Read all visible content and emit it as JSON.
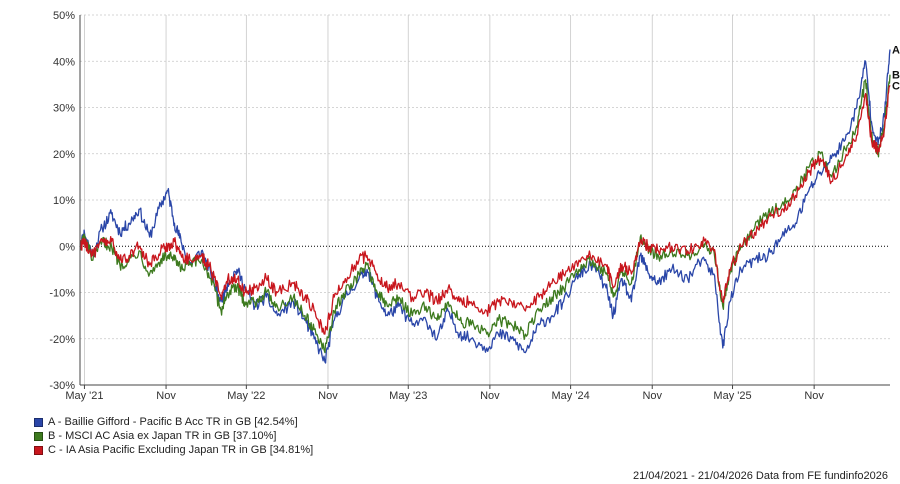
{
  "chart_data": {
    "type": "line",
    "y_unit": "%",
    "ylim": [
      -30,
      50
    ],
    "y_ticks": [
      50,
      40,
      30,
      20,
      10,
      0,
      -10,
      -20,
      -30
    ],
    "y_tick_labels": [
      "50%",
      "40%",
      "30%",
      "20%",
      "10%",
      "0%",
      "-10%",
      "-20%",
      "-30%"
    ],
    "xlim": [
      "2021-04-21",
      "2026-04-21"
    ],
    "x_ticks": [
      {
        "date": "2021-05-01",
        "label": "May '21"
      },
      {
        "date": "2021-11-01",
        "label": "Nov"
      },
      {
        "date": "2022-05-01",
        "label": "May '22"
      },
      {
        "date": "2022-11-01",
        "label": "Nov"
      },
      {
        "date": "2023-05-01",
        "label": "May '23"
      },
      {
        "date": "2023-11-01",
        "label": "Nov"
      },
      {
        "date": "2024-05-01",
        "label": "May '24"
      },
      {
        "date": "2024-11-01",
        "label": "Nov"
      },
      {
        "date": "2025-05-01",
        "label": "May '25"
      },
      {
        "date": "2025-11-01",
        "label": "Nov"
      }
    ],
    "grid": true,
    "zero_line": "dotted",
    "legend_position": "bottom-left",
    "series": [
      {
        "key": "A",
        "name": "A - Baillie Gifford - Pacific B Acc TR in GB [42.54%]",
        "color": "#2a46a8",
        "points": [
          [
            "2021-04-21",
            0
          ],
          [
            "2021-05-01",
            3
          ],
          [
            "2021-05-20",
            -2
          ],
          [
            "2021-06-10",
            4
          ],
          [
            "2021-07-01",
            7
          ],
          [
            "2021-07-20",
            3
          ],
          [
            "2021-08-10",
            5
          ],
          [
            "2021-09-01",
            8
          ],
          [
            "2021-09-25",
            2
          ],
          [
            "2021-10-20",
            9
          ],
          [
            "2021-11-05",
            12
          ],
          [
            "2021-11-20",
            5
          ],
          [
            "2021-12-05",
            1
          ],
          [
            "2021-12-25",
            -4
          ],
          [
            "2022-01-20",
            -1
          ],
          [
            "2022-02-10",
            -6
          ],
          [
            "2022-03-05",
            -12
          ],
          [
            "2022-03-20",
            -8
          ],
          [
            "2022-04-10",
            -5
          ],
          [
            "2022-04-28",
            -9
          ],
          [
            "2022-05-20",
            -13
          ],
          [
            "2022-06-15",
            -11
          ],
          [
            "2022-07-10",
            -15
          ],
          [
            "2022-08-15",
            -12
          ],
          [
            "2022-09-10",
            -16
          ],
          [
            "2022-10-01",
            -20
          ],
          [
            "2022-10-25",
            -25
          ],
          [
            "2022-11-15",
            -16
          ],
          [
            "2022-12-10",
            -11
          ],
          [
            "2023-01-10",
            -7
          ],
          [
            "2023-01-28",
            -5
          ],
          [
            "2023-02-20",
            -11
          ],
          [
            "2023-03-15",
            -15
          ],
          [
            "2023-04-10",
            -13
          ],
          [
            "2023-05-10",
            -17
          ],
          [
            "2023-06-10",
            -16
          ],
          [
            "2023-07-05",
            -20
          ],
          [
            "2023-07-30",
            -14
          ],
          [
            "2023-08-25",
            -19
          ],
          [
            "2023-09-20",
            -20
          ],
          [
            "2023-10-25",
            -22
          ],
          [
            "2023-11-20",
            -19
          ],
          [
            "2023-12-20",
            -20
          ],
          [
            "2024-01-20",
            -23
          ],
          [
            "2024-02-20",
            -17
          ],
          [
            "2024-03-20",
            -15
          ],
          [
            "2024-04-15",
            -12
          ],
          [
            "2024-05-20",
            -6
          ],
          [
            "2024-06-20",
            -4
          ],
          [
            "2024-07-20",
            -9
          ],
          [
            "2024-08-05",
            -15
          ],
          [
            "2024-08-25",
            -7
          ],
          [
            "2024-09-15",
            -12
          ],
          [
            "2024-10-05",
            -2
          ],
          [
            "2024-10-25",
            -6
          ],
          [
            "2024-11-15",
            -8
          ],
          [
            "2024-12-15",
            -5
          ],
          [
            "2025-01-20",
            -7
          ],
          [
            "2025-02-20",
            -3
          ],
          [
            "2025-03-20",
            -6
          ],
          [
            "2025-04-09",
            -22
          ],
          [
            "2025-04-25",
            -12
          ],
          [
            "2025-05-20",
            -5
          ],
          [
            "2025-06-20",
            -3
          ],
          [
            "2025-07-20",
            -2
          ],
          [
            "2025-08-20",
            2
          ],
          [
            "2025-09-20",
            5
          ],
          [
            "2025-10-20",
            12
          ],
          [
            "2025-11-15",
            16
          ],
          [
            "2025-12-10",
            19
          ],
          [
            "2026-01-10",
            23
          ],
          [
            "2026-02-05",
            30
          ],
          [
            "2026-02-25",
            40
          ],
          [
            "2026-03-10",
            27
          ],
          [
            "2026-03-25",
            22
          ],
          [
            "2026-04-08",
            28
          ],
          [
            "2026-04-21",
            42.54
          ]
        ]
      },
      {
        "key": "B",
        "name": "B - MSCI AC Asia ex Japan TR in GB [37.10%]",
        "color": "#3d7a1e",
        "points": [
          [
            "2021-04-21",
            0
          ],
          [
            "2021-05-01",
            2
          ],
          [
            "2021-05-20",
            -3
          ],
          [
            "2021-06-10",
            1
          ],
          [
            "2021-07-01",
            0
          ],
          [
            "2021-07-20",
            -4
          ],
          [
            "2021-08-10",
            -3
          ],
          [
            "2021-09-01",
            -1
          ],
          [
            "2021-09-25",
            -6
          ],
          [
            "2021-10-20",
            -3
          ],
          [
            "2021-11-05",
            -2
          ],
          [
            "2021-11-20",
            -3
          ],
          [
            "2021-12-05",
            -5
          ],
          [
            "2021-12-25",
            -4
          ],
          [
            "2022-01-20",
            -3
          ],
          [
            "2022-02-10",
            -7
          ],
          [
            "2022-03-05",
            -14
          ],
          [
            "2022-03-20",
            -10
          ],
          [
            "2022-04-10",
            -9
          ],
          [
            "2022-04-28",
            -12
          ],
          [
            "2022-05-20",
            -12
          ],
          [
            "2022-06-15",
            -10
          ],
          [
            "2022-07-10",
            -13
          ],
          [
            "2022-08-15",
            -11
          ],
          [
            "2022-09-10",
            -15
          ],
          [
            "2022-10-01",
            -18
          ],
          [
            "2022-10-25",
            -23
          ],
          [
            "2022-11-15",
            -14
          ],
          [
            "2022-12-10",
            -10
          ],
          [
            "2023-01-10",
            -6
          ],
          [
            "2023-01-28",
            -4
          ],
          [
            "2023-02-20",
            -10
          ],
          [
            "2023-03-15",
            -13
          ],
          [
            "2023-04-10",
            -11
          ],
          [
            "2023-05-10",
            -15
          ],
          [
            "2023-06-10",
            -13
          ],
          [
            "2023-07-05",
            -16
          ],
          [
            "2023-07-30",
            -12
          ],
          [
            "2023-08-25",
            -16
          ],
          [
            "2023-09-20",
            -17
          ],
          [
            "2023-10-25",
            -19
          ],
          [
            "2023-11-20",
            -16
          ],
          [
            "2023-12-20",
            -17
          ],
          [
            "2024-01-20",
            -19
          ],
          [
            "2024-02-20",
            -14
          ],
          [
            "2024-03-20",
            -11
          ],
          [
            "2024-04-15",
            -9
          ],
          [
            "2024-05-20",
            -5
          ],
          [
            "2024-06-20",
            -3
          ],
          [
            "2024-07-20",
            -6
          ],
          [
            "2024-08-05",
            -11
          ],
          [
            "2024-08-25",
            -5
          ],
          [
            "2024-09-15",
            -8
          ],
          [
            "2024-10-05",
            2
          ],
          [
            "2024-10-25",
            -1
          ],
          [
            "2024-11-15",
            -2
          ],
          [
            "2024-12-15",
            -1
          ],
          [
            "2025-01-20",
            -2
          ],
          [
            "2025-02-20",
            0
          ],
          [
            "2025-03-20",
            -1
          ],
          [
            "2025-04-09",
            -13
          ],
          [
            "2025-04-25",
            -6
          ],
          [
            "2025-05-20",
            0
          ],
          [
            "2025-06-20",
            4
          ],
          [
            "2025-07-20",
            7
          ],
          [
            "2025-08-20",
            9
          ],
          [
            "2025-09-20",
            12
          ],
          [
            "2025-10-20",
            17
          ],
          [
            "2025-11-15",
            20
          ],
          [
            "2025-12-10",
            15
          ],
          [
            "2026-01-10",
            21
          ],
          [
            "2026-02-05",
            26
          ],
          [
            "2026-02-25",
            36
          ],
          [
            "2026-03-10",
            24
          ],
          [
            "2026-03-25",
            20
          ],
          [
            "2026-04-08",
            26
          ],
          [
            "2026-04-21",
            37.1
          ]
        ]
      },
      {
        "key": "C",
        "name": "C - IA Asia Pacific Excluding Japan TR in GB [34.81%]",
        "color": "#c8161d",
        "points": [
          [
            "2021-04-21",
            0
          ],
          [
            "2021-05-01",
            1
          ],
          [
            "2021-05-20",
            -2
          ],
          [
            "2021-06-10",
            1
          ],
          [
            "2021-07-01",
            1
          ],
          [
            "2021-07-20",
            -3
          ],
          [
            "2021-08-10",
            -2
          ],
          [
            "2021-09-01",
            0
          ],
          [
            "2021-09-25",
            -4
          ],
          [
            "2021-10-20",
            -1
          ],
          [
            "2021-11-05",
            0
          ],
          [
            "2021-11-20",
            1
          ],
          [
            "2021-12-05",
            -2
          ],
          [
            "2021-12-25",
            -3
          ],
          [
            "2022-01-20",
            -2
          ],
          [
            "2022-02-10",
            -5
          ],
          [
            "2022-03-05",
            -11
          ],
          [
            "2022-03-20",
            -7
          ],
          [
            "2022-04-10",
            -7
          ],
          [
            "2022-04-28",
            -10
          ],
          [
            "2022-05-20",
            -9
          ],
          [
            "2022-06-15",
            -7
          ],
          [
            "2022-07-10",
            -10
          ],
          [
            "2022-08-15",
            -8
          ],
          [
            "2022-09-10",
            -11
          ],
          [
            "2022-10-01",
            -14
          ],
          [
            "2022-10-25",
            -19
          ],
          [
            "2022-11-15",
            -11
          ],
          [
            "2022-12-10",
            -7
          ],
          [
            "2023-01-10",
            -3
          ],
          [
            "2023-01-28",
            -2
          ],
          [
            "2023-02-20",
            -6
          ],
          [
            "2023-03-15",
            -9
          ],
          [
            "2023-04-10",
            -8
          ],
          [
            "2023-05-10",
            -11
          ],
          [
            "2023-06-10",
            -10
          ],
          [
            "2023-07-05",
            -12
          ],
          [
            "2023-07-30",
            -9
          ],
          [
            "2023-08-25",
            -12
          ],
          [
            "2023-09-20",
            -12
          ],
          [
            "2023-10-25",
            -14
          ],
          [
            "2023-11-20",
            -12
          ],
          [
            "2023-12-20",
            -12
          ],
          [
            "2024-01-20",
            -14
          ],
          [
            "2024-02-20",
            -11
          ],
          [
            "2024-03-20",
            -8
          ],
          [
            "2024-04-15",
            -6
          ],
          [
            "2024-05-20",
            -3
          ],
          [
            "2024-06-20",
            -2
          ],
          [
            "2024-07-20",
            -4
          ],
          [
            "2024-08-05",
            -9
          ],
          [
            "2024-08-25",
            -4
          ],
          [
            "2024-09-15",
            -6
          ],
          [
            "2024-10-05",
            1
          ],
          [
            "2024-10-25",
            0
          ],
          [
            "2024-11-15",
            -1
          ],
          [
            "2024-12-15",
            0
          ],
          [
            "2025-01-20",
            -1
          ],
          [
            "2025-02-20",
            1
          ],
          [
            "2025-03-20",
            -1
          ],
          [
            "2025-04-09",
            -12
          ],
          [
            "2025-04-25",
            -5
          ],
          [
            "2025-05-20",
            0
          ],
          [
            "2025-06-20",
            3
          ],
          [
            "2025-07-20",
            6
          ],
          [
            "2025-08-20",
            8
          ],
          [
            "2025-09-20",
            11
          ],
          [
            "2025-10-20",
            16
          ],
          [
            "2025-11-15",
            19
          ],
          [
            "2025-12-10",
            14
          ],
          [
            "2026-01-10",
            19
          ],
          [
            "2026-02-05",
            24
          ],
          [
            "2026-02-25",
            33
          ],
          [
            "2026-03-10",
            23
          ],
          [
            "2026-03-25",
            21
          ],
          [
            "2026-04-08",
            25
          ],
          [
            "2026-04-21",
            34.81
          ]
        ]
      }
    ],
    "footer": "21/04/2021 - 21/04/2026 Data from FE fundinfo2026"
  }
}
